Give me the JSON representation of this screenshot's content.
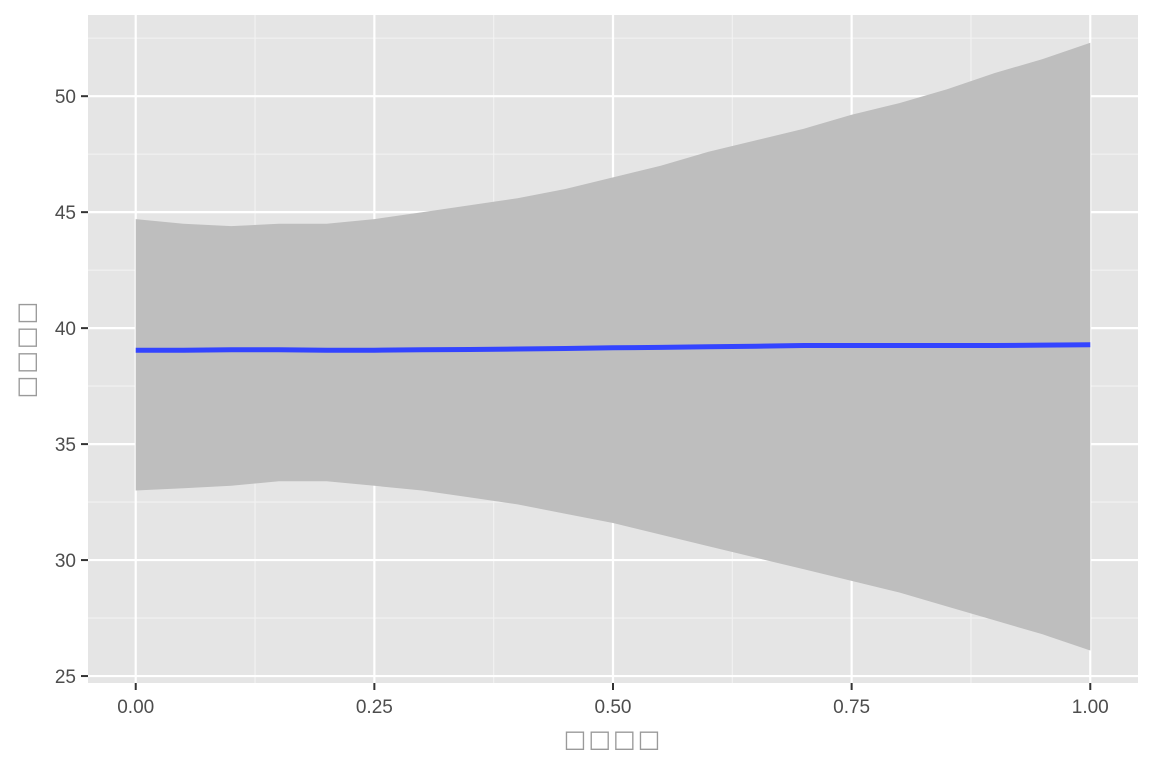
{
  "chart_data": {
    "type": "line",
    "title": "",
    "xlabel": "□□□□",
    "ylabel": "□□□□",
    "xlim": [
      -0.05,
      1.05
    ],
    "ylim": [
      24.7,
      53.5
    ],
    "x_ticks": [
      0,
      0.25,
      0.5,
      0.75,
      1
    ],
    "x_tick_labels": [
      "0.00",
      "0.25",
      "0.50",
      "0.75",
      "1.00"
    ],
    "y_ticks": [
      25,
      30,
      35,
      40,
      45,
      50
    ],
    "y_tick_labels": [
      "25",
      "30",
      "35",
      "40",
      "45",
      "50"
    ],
    "grid": true,
    "legend": "none",
    "series": [
      {
        "x": [
          0,
          0.05,
          0.1,
          0.15,
          0.2,
          0.25,
          0.3,
          0.35,
          0.4,
          0.45,
          0.5,
          0.55,
          0.6,
          0.65,
          0.7,
          0.75,
          0.8,
          0.85,
          0.9,
          0.95,
          1.0
        ],
        "y": [
          39.05,
          39.05,
          39.07,
          39.07,
          39.05,
          39.05,
          39.07,
          39.08,
          39.1,
          39.12,
          39.15,
          39.17,
          39.2,
          39.22,
          39.25,
          39.25,
          39.25,
          39.25,
          39.25,
          39.27,
          39.28
        ],
        "lower": [
          33.0,
          33.1,
          33.2,
          33.4,
          33.4,
          33.2,
          33.0,
          32.7,
          32.4,
          32.0,
          31.6,
          31.1,
          30.6,
          30.1,
          29.6,
          29.1,
          28.6,
          28.0,
          27.4,
          26.8,
          26.1
        ],
        "upper": [
          44.7,
          44.5,
          44.4,
          44.5,
          44.5,
          44.7,
          45.0,
          45.3,
          45.6,
          46.0,
          46.5,
          47.0,
          47.6,
          48.1,
          48.6,
          49.2,
          49.7,
          50.3,
          51.0,
          51.6,
          52.3
        ]
      }
    ],
    "colors": {
      "panel_background": "#e5e5e5",
      "grid_major": "#ffffff",
      "grid_minor": "#f2f2f2",
      "line": "#3344ff",
      "ribbon": "#bebebe"
    }
  }
}
